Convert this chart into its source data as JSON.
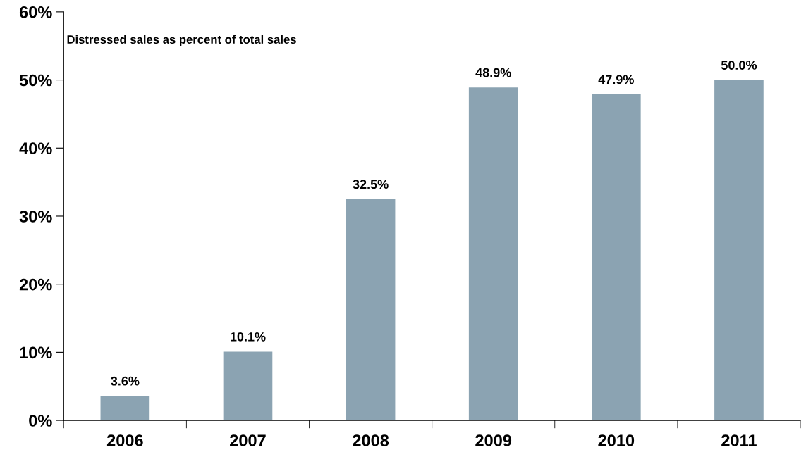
{
  "chart_data": {
    "type": "bar",
    "title": "Distressed sales as percent of total sales",
    "categories": [
      "2006",
      "2007",
      "2008",
      "2009",
      "2010",
      "2011"
    ],
    "values": [
      3.6,
      10.1,
      32.5,
      48.9,
      47.9,
      50.0
    ],
    "value_labels": [
      "3.6%",
      "10.1%",
      "32.5%",
      "48.9%",
      "47.9%",
      "50.0%"
    ],
    "color": "#8ba3b2",
    "ylim": [
      0,
      60
    ],
    "yticks": [
      {
        "value": 0,
        "label": "0%"
      },
      {
        "value": 10,
        "label": "10%"
      },
      {
        "value": 20,
        "label": "20%"
      },
      {
        "value": 30,
        "label": "30%"
      },
      {
        "value": 40,
        "label": "40%"
      },
      {
        "value": 50,
        "label": "50%"
      },
      {
        "value": 60,
        "label": "60%"
      }
    ],
    "grid": false,
    "legend": false
  }
}
